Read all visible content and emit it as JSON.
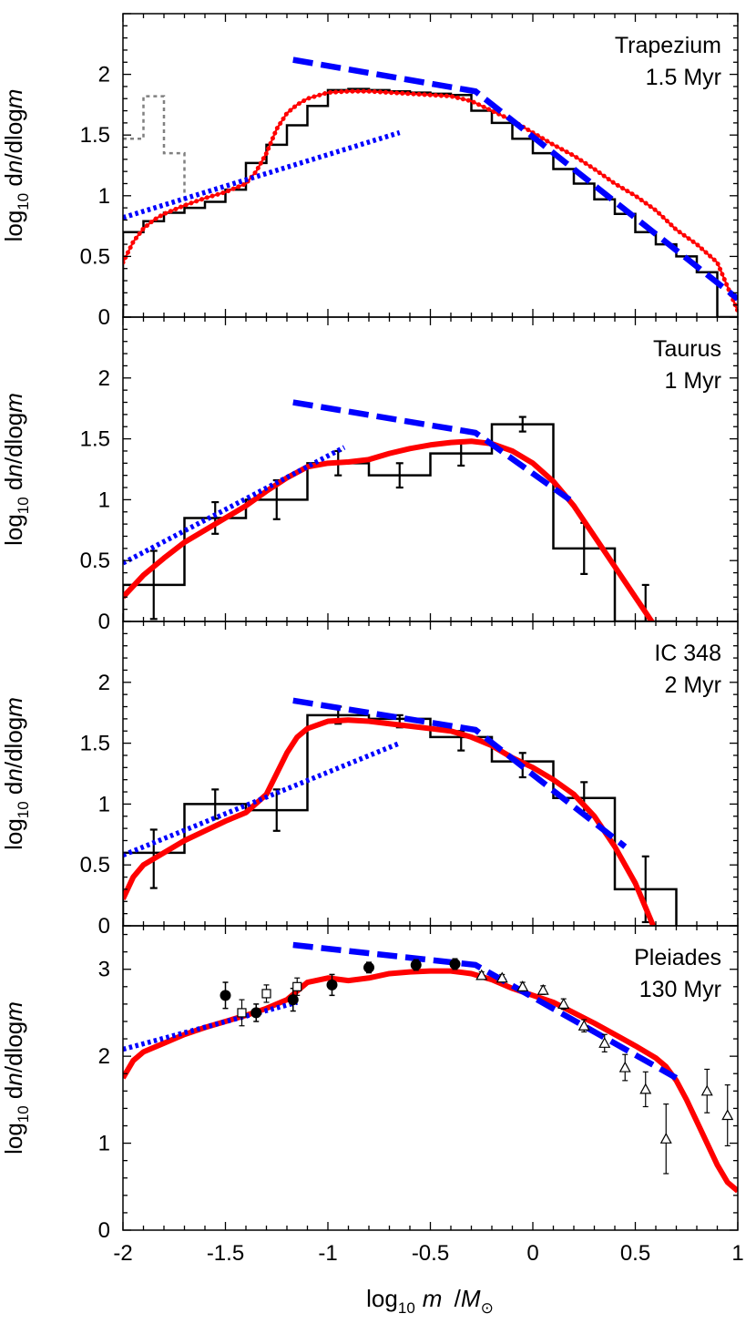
{
  "chart_data": [
    {
      "type": "line",
      "panel_label_1": "Trapezium",
      "panel_label_2": "1.5 Myr",
      "ylabel": "log10 dn/dlogm",
      "xlim": [
        -2,
        1
      ],
      "ylim": [
        0,
        2.5
      ],
      "yticks": [
        0,
        0.5,
        1,
        1.5,
        2
      ],
      "ytick_labels": [
        "0",
        "0.5",
        "1",
        "1.5",
        "2"
      ],
      "histogram_edges": [
        -2.0,
        -1.9,
        -1.8,
        -1.7,
        -1.6,
        -1.5,
        -1.4,
        -1.3,
        -1.2,
        -1.1,
        -1.0,
        -0.9,
        -0.8,
        -0.7,
        -0.6,
        -0.5,
        -0.4,
        -0.3,
        -0.2,
        -0.1,
        0.0,
        0.1,
        0.2,
        0.3,
        0.4,
        0.5,
        0.6,
        0.7,
        0.8,
        0.9,
        1.0
      ],
      "histogram_values": [
        0.7,
        0.79,
        0.86,
        0.9,
        0.95,
        1.05,
        1.27,
        1.42,
        1.58,
        1.74,
        1.87,
        1.88,
        1.87,
        1.86,
        1.85,
        1.84,
        1.83,
        1.7,
        1.6,
        1.47,
        1.35,
        1.22,
        1.1,
        0.97,
        0.85,
        0.7,
        0.6,
        0.5,
        0.37,
        0
      ],
      "gray_histogram_edges": [
        -2.0,
        -1.9,
        -1.8,
        -1.7
      ],
      "gray_histogram_values": [
        1.47,
        1.82,
        1.35
      ],
      "model_red": {
        "x": [
          -2.0,
          -1.95,
          -1.9,
          -1.85,
          -1.8,
          -1.7,
          -1.6,
          -1.5,
          -1.4,
          -1.35,
          -1.3,
          -1.25,
          -1.2,
          -1.15,
          -1.1,
          -1.0,
          -0.9,
          -0.8,
          -0.7,
          -0.6,
          -0.5,
          -0.4,
          -0.3,
          -0.2,
          -0.1,
          0.0,
          0.1,
          0.2,
          0.3,
          0.4,
          0.5,
          0.6,
          0.7,
          0.8,
          0.9,
          1.0
        ],
        "y": [
          0.45,
          0.62,
          0.73,
          0.8,
          0.85,
          0.92,
          0.98,
          1.03,
          1.1,
          1.2,
          1.35,
          1.55,
          1.68,
          1.75,
          1.8,
          1.85,
          1.86,
          1.86,
          1.85,
          1.84,
          1.83,
          1.82,
          1.78,
          1.7,
          1.62,
          1.52,
          1.42,
          1.33,
          1.22,
          1.1,
          1.0,
          0.88,
          0.72,
          0.6,
          0.45,
          0.05
        ]
      },
      "slope_dashed": {
        "x": [
          -1.17,
          -0.28,
          1.0
        ],
        "y": [
          2.12,
          1.86,
          0.15
        ]
      },
      "slope_dotted": {
        "x": [
          -2.0,
          -0.65
        ],
        "y": [
          0.82,
          1.52
        ]
      }
    },
    {
      "type": "line",
      "panel_label_1": "Taurus",
      "panel_label_2": "1 Myr",
      "ylabel": "log10 dn/dlogm",
      "xlim": [
        -2,
        1
      ],
      "ylim": [
        0,
        2.5
      ],
      "yticks": [
        0,
        0.5,
        1,
        1.5,
        2
      ],
      "ytick_labels": [
        "0",
        "0.5",
        "1",
        "1.5",
        "2"
      ],
      "histogram_edges": [
        -2.0,
        -1.7,
        -1.4,
        -1.1,
        -0.8,
        -0.5,
        -0.2,
        0.1,
        0.4,
        0.7
      ],
      "histogram_values": [
        0.3,
        0.85,
        1.0,
        1.3,
        1.2,
        1.38,
        1.62,
        0.6,
        0.0
      ],
      "error_bars": {
        "x": [
          -1.85,
          -1.55,
          -1.25,
          -0.95,
          -0.65,
          -0.35,
          -0.05,
          0.25,
          0.55
        ],
        "y": [
          0.3,
          0.85,
          1.0,
          1.3,
          1.2,
          1.38,
          1.62,
          0.6,
          0.0
        ],
        "err": [
          0.28,
          0.13,
          0.16,
          0.1,
          0.1,
          0.1,
          0.06,
          0.21,
          0.3
        ]
      },
      "model_red": {
        "x": [
          -2.0,
          -1.9,
          -1.8,
          -1.7,
          -1.6,
          -1.5,
          -1.4,
          -1.3,
          -1.2,
          -1.1,
          -1.0,
          -0.9,
          -0.8,
          -0.7,
          -0.6,
          -0.5,
          -0.4,
          -0.3,
          -0.2,
          -0.1,
          0.0,
          0.1,
          0.2,
          0.3,
          0.4,
          0.5,
          0.6
        ],
        "y": [
          0.2,
          0.38,
          0.52,
          0.65,
          0.75,
          0.85,
          0.95,
          1.07,
          1.18,
          1.27,
          1.3,
          1.31,
          1.33,
          1.38,
          1.42,
          1.45,
          1.47,
          1.48,
          1.46,
          1.4,
          1.3,
          1.15,
          0.95,
          0.7,
          0.45,
          0.2,
          -0.05
        ]
      },
      "slope_dashed": {
        "x": [
          -1.17,
          -0.28,
          0.18
        ],
        "y": [
          1.8,
          1.55,
          1.0
        ]
      },
      "slope_dotted": {
        "x": [
          -2.0,
          -0.92
        ],
        "y": [
          0.48,
          1.43
        ]
      }
    },
    {
      "type": "line",
      "panel_label_1": "IC 348",
      "panel_label_2": "2 Myr",
      "ylabel": "log10 dn/dlogm",
      "xlim": [
        -2,
        1
      ],
      "ylim": [
        0,
        2.5
      ],
      "yticks": [
        0,
        0.5,
        1,
        1.5,
        2
      ],
      "ytick_labels": [
        "0",
        "0.5",
        "1",
        "1.5",
        "2"
      ],
      "histogram_edges": [
        -2.0,
        -1.7,
        -1.4,
        -1.1,
        -0.8,
        -0.5,
        -0.2,
        0.1,
        0.4,
        0.7
      ],
      "histogram_values": [
        0.6,
        1.0,
        0.95,
        1.73,
        1.7,
        1.55,
        1.35,
        1.05,
        0.3
      ],
      "error_bars": {
        "x": [
          -1.85,
          -1.55,
          -1.25,
          -0.95,
          -0.65,
          -0.35,
          -0.05,
          0.25,
          0.55
        ],
        "y": [
          0.55,
          1.0,
          0.95,
          1.73,
          1.68,
          1.52,
          1.32,
          1.05,
          0.3
        ],
        "err": [
          0.24,
          0.12,
          0.17,
          0.07,
          0.05,
          0.08,
          0.1,
          0.13,
          0.27
        ]
      },
      "model_red": {
        "x": [
          -2.0,
          -1.95,
          -1.9,
          -1.8,
          -1.7,
          -1.6,
          -1.5,
          -1.4,
          -1.3,
          -1.25,
          -1.2,
          -1.15,
          -1.1,
          -1.0,
          -0.9,
          -0.8,
          -0.7,
          -0.6,
          -0.5,
          -0.4,
          -0.3,
          -0.2,
          -0.1,
          0.0,
          0.1,
          0.2,
          0.3,
          0.4,
          0.5,
          0.55,
          0.6
        ],
        "y": [
          0.22,
          0.4,
          0.5,
          0.6,
          0.7,
          0.78,
          0.86,
          0.93,
          1.08,
          1.25,
          1.42,
          1.55,
          1.62,
          1.68,
          1.69,
          1.68,
          1.66,
          1.64,
          1.62,
          1.6,
          1.55,
          1.48,
          1.38,
          1.3,
          1.2,
          1.08,
          0.9,
          0.65,
          0.35,
          0.15,
          -0.05
        ]
      },
      "slope_dashed": {
        "x": [
          -1.17,
          -0.28,
          0.45
        ],
        "y": [
          1.85,
          1.61,
          0.65
        ]
      },
      "slope_dotted": {
        "x": [
          -2.0,
          -0.65
        ],
        "y": [
          0.58,
          1.5
        ]
      }
    },
    {
      "type": "line",
      "panel_label_1": "Pleiades",
      "panel_label_2": "130 Myr",
      "ylabel": "log10 dn/dlogm",
      "xlim": [
        -2,
        1
      ],
      "ylim": [
        0,
        3.5
      ],
      "yticks": [
        0,
        1,
        2,
        3
      ],
      "ytick_labels": [
        "0",
        "1",
        "2",
        "3"
      ],
      "filled_points": {
        "x": [
          -1.5,
          -1.35,
          -1.17,
          -0.98,
          -0.8,
          -0.57,
          -0.38
        ],
        "y": [
          2.7,
          2.5,
          2.65,
          2.82,
          3.02,
          3.05,
          3.06
        ],
        "err": [
          0.15,
          0.1,
          0.13,
          0.12,
          0.06,
          0.06,
          0.06
        ]
      },
      "open_squares": {
        "x": [
          -1.42,
          -1.3,
          -1.15
        ],
        "y": [
          2.5,
          2.72,
          2.8
        ],
        "err": [
          0.15,
          0.1,
          0.1
        ]
      },
      "open_triangles": {
        "x": [
          -0.25,
          -0.15,
          -0.05,
          0.05,
          0.15,
          0.25,
          0.35,
          0.45,
          0.55,
          0.65,
          0.85,
          0.95
        ],
        "y": [
          2.93,
          2.9,
          2.8,
          2.76,
          2.6,
          2.35,
          2.15,
          1.87,
          1.62,
          1.05,
          1.6,
          1.32
        ],
        "err": [
          0.04,
          0.04,
          0.05,
          0.05,
          0.06,
          0.07,
          0.1,
          0.15,
          0.2,
          0.4,
          0.25,
          0.35
        ]
      },
      "model_red": {
        "x": [
          -2.0,
          -1.95,
          -1.9,
          -1.8,
          -1.7,
          -1.6,
          -1.5,
          -1.4,
          -1.3,
          -1.2,
          -1.1,
          -1.0,
          -0.9,
          -0.8,
          -0.7,
          -0.6,
          -0.5,
          -0.4,
          -0.3,
          -0.2,
          -0.1,
          0.0,
          0.1,
          0.2,
          0.3,
          0.4,
          0.5,
          0.6,
          0.65,
          0.7,
          0.75,
          0.8,
          0.85,
          0.9,
          0.95,
          1.0
        ],
        "y": [
          1.75,
          1.95,
          2.05,
          2.15,
          2.25,
          2.33,
          2.4,
          2.47,
          2.55,
          2.65,
          2.85,
          2.9,
          2.87,
          2.9,
          2.95,
          2.97,
          2.98,
          2.98,
          2.95,
          2.88,
          2.78,
          2.7,
          2.62,
          2.5,
          2.38,
          2.25,
          2.12,
          1.98,
          1.88,
          1.72,
          1.5,
          1.25,
          1.0,
          0.75,
          0.55,
          0.45
        ]
      },
      "slope_dashed": {
        "x": [
          -1.17,
          -0.28,
          0.7
        ],
        "y": [
          3.28,
          3.05,
          1.75
        ]
      },
      "slope_dotted": {
        "x": [
          -2.0,
          -1.15
        ],
        "y": [
          2.08,
          2.62
        ]
      }
    }
  ],
  "xaxis": {
    "ticks": [
      -2,
      -1.5,
      -1,
      -0.5,
      0,
      0.5,
      1
    ],
    "tick_labels": [
      "-2",
      "-1.5",
      "-1",
      "-0.5",
      "0",
      "0.5",
      "1"
    ],
    "label_main": "log",
    "label_sub": "10",
    "label_m": "m",
    "label_unit": " /M",
    "label_unit_sub": "⊙"
  },
  "ylabel_parts": {
    "log": "log",
    "sub": "10",
    "rest": " d",
    "n": "n",
    "mid": "/dlog",
    "m": "m"
  },
  "colors": {
    "model": "#ff0000",
    "slope": "#0000ff",
    "hist": "#000000",
    "gray_hist": "#808080"
  }
}
